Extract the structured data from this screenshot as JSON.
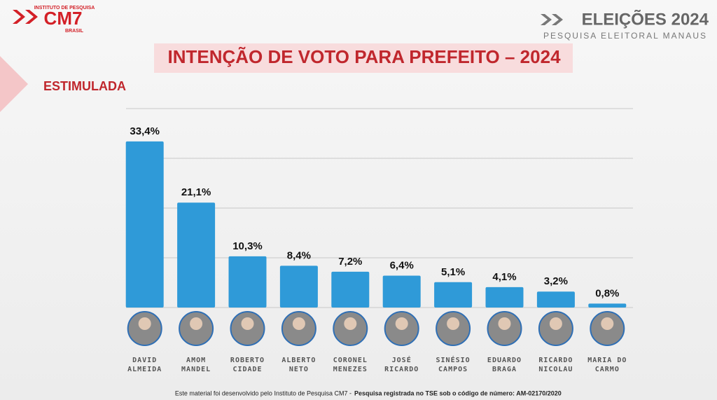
{
  "chart_data": {
    "type": "bar",
    "logo": {
      "top": "INSTITUTO DE PESQUISA",
      "name": "CM7",
      "bottom": "BRASIL"
    },
    "header": {
      "title": "ELEIÇÕES 2024",
      "subtitle": "PESQUISA ELEITORAL MANAUS"
    },
    "title": "INTENÇÃO DE VOTO PARA PREFEITO – 2024",
    "subtitle": "ESTIMULADA",
    "categories": [
      "DAVID ALMEIDA",
      "AMOM MANDEL",
      "ROBERTO CIDADE",
      "ALBERTO NETO",
      "CORONEL MENEZES",
      "JOSÉ RICARDO",
      "SINÉSIO CAMPOS",
      "EDUARDO BRAGA",
      "RICARDO NICOLAU",
      "MARIA DO CARMO"
    ],
    "values": [
      33.4,
      21.1,
      10.3,
      8.4,
      7.2,
      6.4,
      5.1,
      4.1,
      3.2,
      0.8
    ],
    "value_labels": [
      "33,4%",
      "21,1%",
      "10,3%",
      "8,4%",
      "7,2%",
      "6,4%",
      "5,1%",
      "4,1%",
      "3,2%",
      "0,8%"
    ],
    "color": "#2f9ad8",
    "ylim": [
      0,
      40
    ],
    "yticks": [
      0,
      10,
      20,
      30,
      40
    ],
    "grid": true,
    "footer": {
      "text": "Este material foi desenvolvido pelo Instituto de Pesquisa CM7 -",
      "bold": "Pesquisa registrada no TSE sob o código de número: AM-02170/2020"
    }
  }
}
